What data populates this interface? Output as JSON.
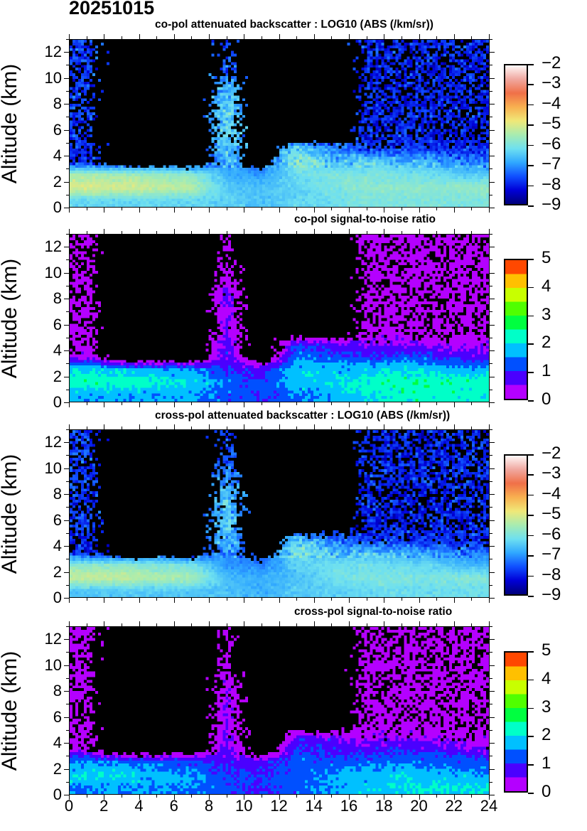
{
  "date_title": "20251015",
  "chart_data": [
    {
      "type": "heatmap",
      "title": "co-pol attenuated backscatter : LOG10 (ABS (/km/sr))",
      "ylabel": "Altitude (km)",
      "xlim": [
        0,
        24
      ],
      "ylim": [
        0,
        13
      ],
      "x_ticks": [
        "0",
        "2",
        "4",
        "6",
        "8",
        "10",
        "12",
        "14",
        "16",
        "18",
        "20",
        "22",
        "24"
      ],
      "y_ticks": [
        "0",
        "2",
        "4",
        "6",
        "8",
        "10",
        "12"
      ],
      "x_bins_hours": 2,
      "y_bins_km": 1,
      "colorbar": {
        "range": [
          -9,
          -2
        ],
        "ticks": [
          "-2",
          "-3",
          "-4",
          "-5",
          "-6",
          "-7",
          "-8",
          "-9"
        ],
        "colors": [
          "#00007a",
          "#0000d8",
          "#1050ff",
          "#30a8ff",
          "#6ee0f0",
          "#a8ecb0",
          "#f0e878",
          "#f8b050",
          "#f07048",
          "#f0a8a0",
          "#fff8f8"
        ]
      },
      "values": [
        [
          -6.3,
          -6.3,
          -6.3,
          -6.3,
          -6.4,
          -6.6,
          -6.3,
          -6.2,
          -6.0,
          -6.0,
          -6.0,
          -6.0
        ],
        [
          -5.0,
          -5.0,
          -5.2,
          -5.3,
          -6.5,
          -6.6,
          -6.4,
          -6.0,
          -5.8,
          -5.8,
          -5.8,
          -5.7
        ],
        [
          -5.5,
          -5.6,
          -5.7,
          -5.8,
          -6.8,
          -7.0,
          -6.2,
          -6.0,
          -6.0,
          -6.1,
          -6.2,
          -6.5
        ],
        [
          -8.0,
          -8.0,
          -7.8,
          -8.0,
          -6.8,
          -7.5,
          -5.8,
          -6.5,
          -6.4,
          -6.6,
          -6.8,
          -7.2
        ],
        [
          -8.0,
          -8.0,
          -8.0,
          -8.0,
          -6.4,
          -7.6,
          -6.3,
          -7.2,
          -7.8,
          -7.8,
          -8.0,
          -8.0
        ],
        [
          -7.8,
          -7.8,
          -7.8,
          -7.8,
          -6.2,
          -7.6,
          -7.8,
          -7.9,
          -8.0,
          -8.0,
          -8.0,
          -8.0
        ],
        [
          -7.8,
          -7.8,
          -7.8,
          -7.8,
          -6.3,
          -7.6,
          -7.8,
          -7.9,
          -8.0,
          -8.0,
          -8.0,
          -8.0
        ],
        [
          -7.8,
          -7.8,
          -7.8,
          -7.8,
          -6.3,
          -7.6,
          -7.8,
          -7.9,
          -8.0,
          -8.0,
          -8.0,
          -8.0
        ],
        [
          -7.8,
          -7.8,
          -7.8,
          -7.8,
          -6.5,
          -7.6,
          -7.8,
          -7.9,
          -8.0,
          -8.0,
          -8.0,
          -8.0
        ],
        [
          -7.8,
          -7.8,
          -7.8,
          -7.8,
          -6.8,
          -7.6,
          -7.8,
          -7.9,
          -8.0,
          -8.0,
          -8.0,
          -8.0
        ],
        [
          -7.8,
          -7.8,
          -7.8,
          -7.8,
          -7.5,
          -7.7,
          -7.8,
          -7.9,
          -8.0,
          -8.0,
          -8.0,
          -8.0
        ],
        [
          -7.8,
          -7.8,
          -7.8,
          -7.8,
          -7.6,
          -7.7,
          -7.8,
          -7.9,
          -8.0,
          -8.0,
          -8.0,
          -8.0
        ],
        [
          -7.8,
          -7.8,
          -7.8,
          -7.8,
          -7.7,
          -7.7,
          -7.8,
          -7.9,
          -8.0,
          -8.0,
          -8.0,
          -8.0
        ]
      ]
    },
    {
      "type": "heatmap",
      "title": "co-pol signal-to-noise ratio",
      "ylabel": "Altitude (km)",
      "xlim": [
        0,
        24
      ],
      "ylim": [
        0,
        13
      ],
      "x_ticks": [
        "0",
        "2",
        "4",
        "6",
        "8",
        "10",
        "12",
        "14",
        "16",
        "18",
        "20",
        "22",
        "24"
      ],
      "y_ticks": [
        "0",
        "2",
        "4",
        "6",
        "8",
        "10",
        "12"
      ],
      "x_bins_hours": 2,
      "y_bins_km": 1,
      "colorbar": {
        "range": [
          0,
          5
        ],
        "ticks": [
          "5",
          "4",
          "3",
          "2",
          "1",
          "0"
        ],
        "discrete": true,
        "colors": [
          "#b400ff",
          "#4a00ff",
          "#0050ff",
          "#00c0ff",
          "#00ffc8",
          "#00ff40",
          "#50ff00",
          "#c8ff00",
          "#ffc000",
          "#ff4800"
        ]
      },
      "values": [
        [
          1.6,
          1.6,
          1.6,
          1.6,
          1.2,
          1.0,
          1.4,
          1.6,
          2.0,
          2.2,
          2.2,
          2.2
        ],
        [
          2.3,
          2.3,
          2.2,
          2.0,
          1.3,
          1.2,
          1.8,
          2.0,
          2.2,
          2.4,
          2.4,
          2.3
        ],
        [
          2.0,
          1.8,
          1.6,
          1.5,
          1.0,
          0.8,
          1.8,
          1.7,
          1.8,
          2.0,
          1.8,
          1.6
        ],
        [
          0.3,
          -1,
          -1,
          -1,
          0.8,
          -1,
          1.5,
          1.2,
          1.0,
          1.2,
          1.0,
          0.7
        ],
        [
          0.2,
          -1,
          -1,
          -1,
          0.8,
          -1,
          1.0,
          0.7,
          0.5,
          0.4,
          0.4,
          0.3
        ],
        [
          0.1,
          -1,
          -1,
          -1,
          0.5,
          -1,
          -1,
          -1,
          0.1,
          0.1,
          0.1,
          0.1
        ],
        [
          0.1,
          -1,
          -1,
          -1,
          0.6,
          -1,
          -1,
          -1,
          0.1,
          0.1,
          0.1,
          0.1
        ],
        [
          0.1,
          -1,
          -1,
          -1,
          0.6,
          -1,
          -1,
          -1,
          0.1,
          0.1,
          0.1,
          0.1
        ],
        [
          0.1,
          -1,
          -1,
          -1,
          0.6,
          -1,
          -1,
          -1,
          0.1,
          0.1,
          0.1,
          0.1
        ],
        [
          0.1,
          -1,
          -1,
          -1,
          0.3,
          -1,
          -1,
          -1,
          0.1,
          0.1,
          0.1,
          0.1
        ],
        [
          0.1,
          -1,
          -1,
          -1,
          0.1,
          -1,
          -1,
          -1,
          0.1,
          0.1,
          0.1,
          0.1
        ],
        [
          0.1,
          -1,
          -1,
          -1,
          0.0,
          -1,
          -1,
          -1,
          0.1,
          0.1,
          0.1,
          0.1
        ],
        [
          0.1,
          -1,
          -1,
          -1,
          0.0,
          -1,
          -1,
          -1,
          0.1,
          0.1,
          0.1,
          0.1
        ]
      ]
    },
    {
      "type": "heatmap",
      "title": "cross-pol attenuated backscatter : LOG10 (ABS (/km/sr))",
      "ylabel": "Altitude (km)",
      "xlim": [
        0,
        24
      ],
      "ylim": [
        0,
        13
      ],
      "x_ticks": [
        "0",
        "2",
        "4",
        "6",
        "8",
        "10",
        "12",
        "14",
        "16",
        "18",
        "20",
        "22",
        "24"
      ],
      "y_ticks": [
        "0",
        "2",
        "4",
        "6",
        "8",
        "10",
        "12"
      ],
      "x_bins_hours": 2,
      "y_bins_km": 1,
      "colorbar": {
        "range": [
          -9,
          -2
        ],
        "ticks": [
          "-2",
          "-3",
          "-4",
          "-5",
          "-6",
          "-7",
          "-8",
          "-9"
        ],
        "colors": [
          "#00007a",
          "#0000d8",
          "#1050ff",
          "#30a8ff",
          "#6ee0f0",
          "#a8ecb0",
          "#f0e878",
          "#f8b050",
          "#f07048",
          "#f0a8a0",
          "#fff8f8"
        ]
      },
      "values": [
        [
          -6.5,
          -6.5,
          -6.5,
          -6.5,
          -6.6,
          -6.8,
          -6.5,
          -6.4,
          -6.3,
          -6.2,
          -6.2,
          -6.2
        ],
        [
          -5.2,
          -5.2,
          -5.4,
          -5.5,
          -6.7,
          -6.8,
          -6.6,
          -6.2,
          -6.0,
          -6.0,
          -6.0,
          -5.9
        ],
        [
          -5.8,
          -5.9,
          -6.0,
          -6.1,
          -7.0,
          -7.2,
          -6.4,
          -6.2,
          -6.2,
          -6.3,
          -6.4,
          -6.7
        ],
        [
          -8.0,
          -8.0,
          -7.8,
          -8.0,
          -7.0,
          -7.7,
          -6.0,
          -6.7,
          -6.6,
          -6.8,
          -7.0,
          -7.4
        ],
        [
          -8.0,
          -8.0,
          -8.0,
          -8.0,
          -6.6,
          -7.8,
          -6.5,
          -7.4,
          -7.9,
          -7.9,
          -8.0,
          -8.0
        ],
        [
          -7.8,
          -7.8,
          -7.8,
          -7.8,
          -6.4,
          -7.8,
          -7.9,
          -8.0,
          -8.0,
          -8.0,
          -8.0,
          -8.0
        ],
        [
          -7.8,
          -7.8,
          -7.8,
          -7.8,
          -6.5,
          -7.8,
          -7.9,
          -8.0,
          -8.0,
          -8.0,
          -8.0,
          -8.0
        ],
        [
          -7.8,
          -7.8,
          -7.8,
          -7.8,
          -6.5,
          -7.8,
          -7.9,
          -8.0,
          -8.0,
          -8.0,
          -8.0,
          -8.0
        ],
        [
          -7.8,
          -7.8,
          -7.8,
          -7.8,
          -6.7,
          -7.8,
          -7.9,
          -8.0,
          -8.0,
          -8.0,
          -8.0,
          -8.0
        ],
        [
          -7.8,
          -7.8,
          -7.8,
          -7.8,
          -7.0,
          -7.8,
          -7.9,
          -8.0,
          -8.0,
          -8.0,
          -8.0,
          -8.0
        ],
        [
          -7.8,
          -7.8,
          -7.8,
          -7.8,
          -7.6,
          -7.8,
          -7.9,
          -8.0,
          -8.0,
          -8.0,
          -8.0,
          -8.0
        ],
        [
          -7.8,
          -7.8,
          -7.8,
          -7.8,
          -7.7,
          -7.8,
          -7.9,
          -8.0,
          -8.0,
          -8.0,
          -8.0,
          -8.0
        ],
        [
          -7.8,
          -7.8,
          -7.8,
          -7.8,
          -7.7,
          -7.8,
          -7.9,
          -8.0,
          -8.0,
          -8.0,
          -8.0,
          -8.0
        ]
      ]
    },
    {
      "type": "heatmap",
      "title": "cross-pol signal-to-noise ratio",
      "ylabel": "Altitude (km)",
      "xlabel_ticks_shown": true,
      "xlim": [
        0,
        24
      ],
      "ylim": [
        0,
        13
      ],
      "x_ticks": [
        "0",
        "2",
        "4",
        "6",
        "8",
        "10",
        "12",
        "14",
        "16",
        "18",
        "20",
        "22",
        "24"
      ],
      "y_ticks": [
        "0",
        "2",
        "4",
        "6",
        "8",
        "10",
        "12"
      ],
      "x_bins_hours": 2,
      "y_bins_km": 1,
      "colorbar": {
        "range": [
          0,
          5
        ],
        "ticks": [
          "5",
          "4",
          "3",
          "2",
          "1",
          "0"
        ],
        "discrete": true,
        "colors": [
          "#b400ff",
          "#4a00ff",
          "#0050ff",
          "#00c0ff",
          "#00ffc8",
          "#00ff40",
          "#50ff00",
          "#c8ff00",
          "#ffc000",
          "#ff4800"
        ]
      },
      "values": [
        [
          1.5,
          1.5,
          1.5,
          1.5,
          1.2,
          1.0,
          1.3,
          1.5,
          1.8,
          2.0,
          2.0,
          2.0
        ],
        [
          2.0,
          2.0,
          1.8,
          1.6,
          1.0,
          1.0,
          1.2,
          1.6,
          1.8,
          1.8,
          1.8,
          1.6
        ],
        [
          1.5,
          1.4,
          1.2,
          1.2,
          0.8,
          0.7,
          1.3,
          1.2,
          1.3,
          1.4,
          1.3,
          1.2
        ],
        [
          0.2,
          -1,
          -1,
          -1,
          0.7,
          -1,
          1.1,
          0.9,
          0.7,
          0.9,
          0.8,
          0.5
        ],
        [
          0.1,
          -1,
          -1,
          -1,
          0.6,
          -1,
          0.7,
          0.5,
          0.3,
          0.3,
          0.3,
          0.2
        ],
        [
          0.1,
          -1,
          -1,
          -1,
          0.5,
          -1,
          -1,
          -1,
          0.1,
          0.1,
          0.1,
          0.1
        ],
        [
          0.1,
          -1,
          -1,
          -1,
          0.5,
          -1,
          -1,
          -1,
          0.1,
          0.1,
          0.1,
          0.1
        ],
        [
          0.1,
          -1,
          -1,
          -1,
          0.5,
          -1,
          -1,
          -1,
          0.1,
          0.1,
          0.1,
          0.1
        ],
        [
          0.1,
          -1,
          -1,
          -1,
          0.4,
          -1,
          -1,
          -1,
          0.1,
          0.1,
          0.1,
          0.1
        ],
        [
          0.1,
          -1,
          -1,
          -1,
          0.2,
          -1,
          -1,
          -1,
          0.1,
          0.1,
          0.1,
          0.1
        ],
        [
          0.1,
          -1,
          -1,
          -1,
          0.1,
          -1,
          -1,
          -1,
          0.1,
          0.1,
          0.1,
          0.1
        ],
        [
          0.1,
          -1,
          -1,
          -1,
          0.0,
          -1,
          -1,
          -1,
          0.1,
          0.1,
          0.1,
          0.1
        ],
        [
          0.1,
          -1,
          -1,
          -1,
          0.0,
          -1,
          -1,
          -1,
          0.1,
          0.1,
          0.1,
          0.1
        ]
      ]
    }
  ]
}
